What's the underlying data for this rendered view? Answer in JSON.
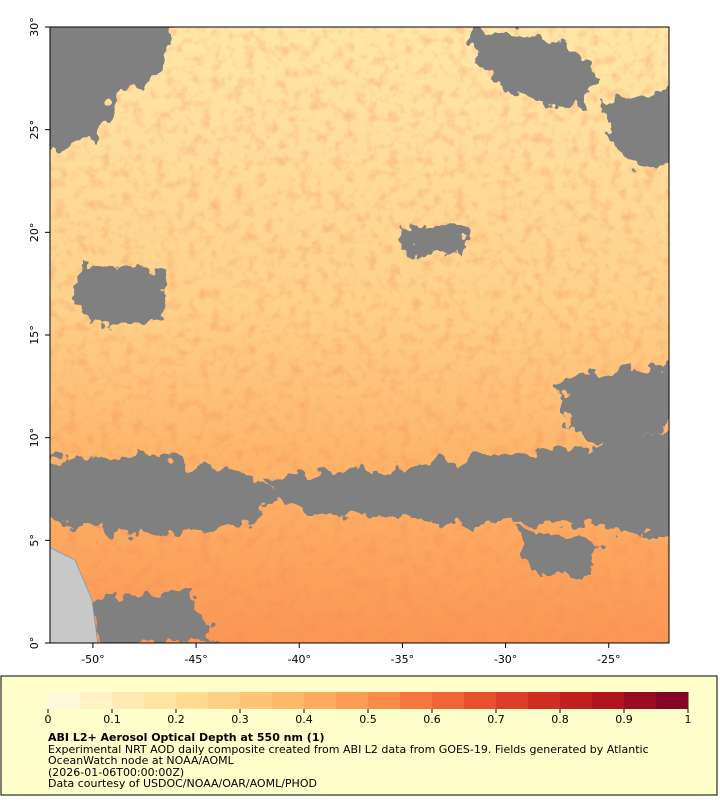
{
  "map": {
    "xlim": [
      -52.08,
      -22.08
    ],
    "ylim": [
      0,
      30
    ],
    "xticks": [
      {
        "value": -50,
        "label": "-50°"
      },
      {
        "value": -45,
        "label": "-45°"
      },
      {
        "value": -40,
        "label": "-40°"
      },
      {
        "value": -35,
        "label": "-35°"
      },
      {
        "value": -30,
        "label": "-30°"
      },
      {
        "value": -25,
        "label": "-25°"
      }
    ],
    "yticks": [
      {
        "value": 0,
        "label": "0°"
      },
      {
        "value": 5,
        "label": "5°"
      },
      {
        "value": 10,
        "label": "10°"
      },
      {
        "value": 15,
        "label": "15°"
      },
      {
        "value": 20,
        "label": "20°"
      },
      {
        "value": 25,
        "label": "25°"
      },
      {
        "value": 30,
        "label": "30°"
      }
    ]
  },
  "colorbar": {
    "lim": [
      0,
      1
    ],
    "ticks": [
      0,
      0.1,
      0.2,
      0.3,
      0.4,
      0.5,
      0.6,
      0.7,
      0.8,
      0.9,
      1
    ],
    "colors": [
      "#fff8d8",
      "#fff2c6",
      "#ffebb3",
      "#ffe3a2",
      "#ffda91",
      "#ffd083",
      "#ffc576",
      "#feb96a",
      "#fdab5f",
      "#fc9c54",
      "#fa8b49",
      "#f6783f",
      "#f06436",
      "#e8502d",
      "#dd3e26",
      "#d12e21",
      "#c21f1f",
      "#b0141f",
      "#9b0b22",
      "#850424"
    ]
  },
  "legend": {
    "title": "ABI L2+ Aerosol Optical Depth at 550 nm (1)",
    "lines": [
      "Experimental NRT AOD daily composite created from ABI L2 data from GOES-19. Fields generated by Atlantic",
      "OceanWatch node at NOAA/AOML",
      "(2026-01-06T00:00:00Z)",
      "Data courtesy of USDOC/NOAA/OAR/AOML/PHOD"
    ]
  }
}
